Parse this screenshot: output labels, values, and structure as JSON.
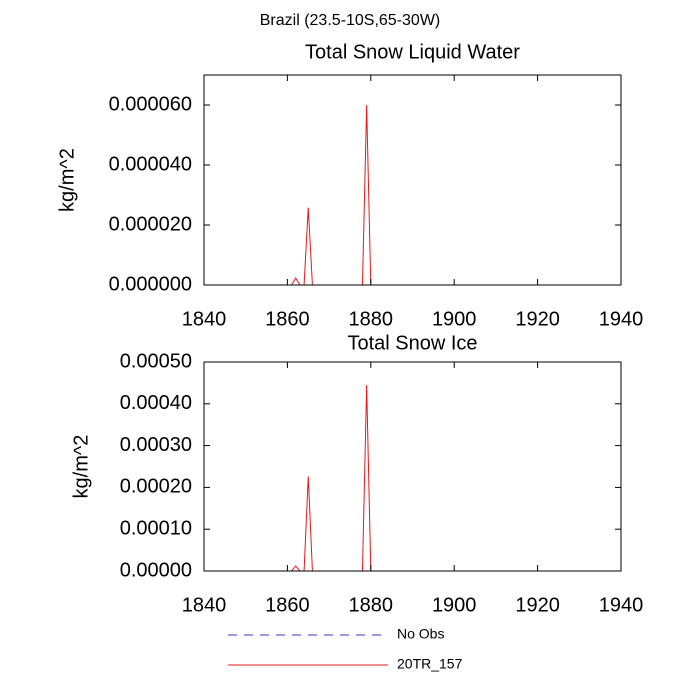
{
  "title": "Brazil (23.5-10S,65-30W)",
  "legend": [
    {
      "name": "No Obs",
      "color": "#3333cc",
      "dashed": true
    },
    {
      "name": "20TR_157",
      "color": "#e31a1c",
      "dashed": false
    }
  ],
  "chart_data": [
    {
      "type": "line",
      "title": "Total Snow Liquid Water",
      "ylabel": "kg/m^2",
      "x": [
        1840,
        1861,
        1862,
        1863,
        1864,
        1865,
        1866,
        1878,
        1879,
        1880,
        1940
      ],
      "series": [
        {
          "name": "20TR_157",
          "color": "#e31a1c",
          "values": [
            0,
            0,
            2.3e-06,
            0,
            0,
            2.58e-05,
            0,
            0,
            6e-05,
            0,
            0
          ]
        }
      ],
      "xlim": [
        1840,
        1940
      ],
      "xticks": [
        1840,
        1860,
        1880,
        1900,
        1920,
        1940
      ],
      "ylim": [
        0,
        7e-05
      ],
      "yticks": [
        {
          "value": 0,
          "label": "0.000000"
        },
        {
          "value": 2e-05,
          "label": "0.000020"
        },
        {
          "value": 4e-05,
          "label": "0.000040"
        },
        {
          "value": 6e-05,
          "label": "0.000060"
        }
      ]
    },
    {
      "type": "line",
      "title": "Total Snow Ice",
      "ylabel": "kg/m^2",
      "x": [
        1840,
        1861,
        1862,
        1863,
        1864,
        1865,
        1866,
        1878,
        1879,
        1880,
        1940
      ],
      "series": [
        {
          "name": "20TR_157",
          "color": "#e31a1c",
          "values": [
            0,
            0,
            1.2e-05,
            0,
            0,
            0.000226,
            0,
            0,
            0.000445,
            0,
            0
          ]
        }
      ],
      "xlim": [
        1840,
        1940
      ],
      "xticks": [
        1840,
        1860,
        1880,
        1900,
        1920,
        1940
      ],
      "ylim": [
        0,
        0.0005
      ],
      "yticks": [
        {
          "value": 0,
          "label": "0.00000"
        },
        {
          "value": 0.0001,
          "label": "0.00010"
        },
        {
          "value": 0.0002,
          "label": "0.00020"
        },
        {
          "value": 0.0003,
          "label": "0.00030"
        },
        {
          "value": 0.0004,
          "label": "0.00040"
        },
        {
          "value": 0.0005,
          "label": "0.00050"
        }
      ]
    }
  ]
}
